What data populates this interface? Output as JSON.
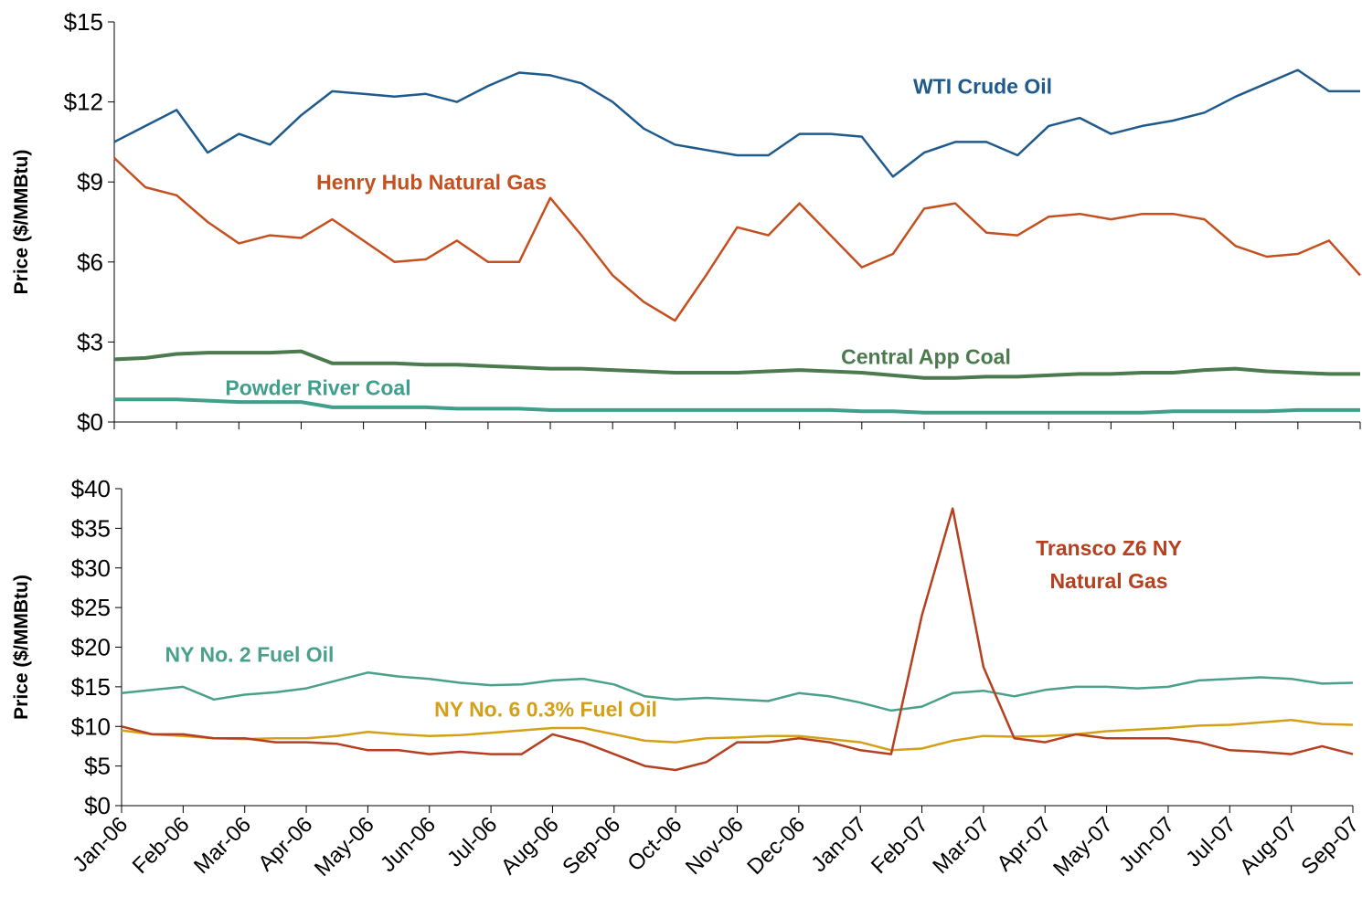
{
  "chart_data": [
    {
      "type": "line",
      "ylabel": "Price ($/MMBtu)",
      "categories": [
        null,
        null,
        null,
        null,
        null,
        null,
        null,
        null,
        null,
        null,
        null,
        null,
        null,
        null,
        null,
        null,
        null,
        null,
        null,
        null,
        null,
        null,
        null,
        null,
        null,
        null,
        null,
        null,
        null,
        null,
        null,
        null,
        null,
        null,
        null,
        null,
        null,
        null,
        null,
        null,
        null
      ],
      "ylim": [
        0,
        15
      ],
      "yticks": [
        {
          "value": 0,
          "label": "$0"
        },
        {
          "value": 3,
          "label": "$3"
        },
        {
          "value": 6,
          "label": "$6"
        },
        {
          "value": 9,
          "label": "$9"
        },
        {
          "value": 12,
          "label": "$12"
        },
        {
          "value": 15,
          "label": "$15"
        }
      ],
      "series": [
        {
          "name": "WTI Crude Oil",
          "color": "#1f5a8c",
          "values": [
            10.5,
            11.1,
            11.7,
            10.1,
            10.8,
            10.4,
            11.5,
            12.4,
            12.3,
            12.2,
            12.3,
            12.0,
            12.6,
            13.1,
            13.0,
            12.7,
            12.0,
            11.0,
            10.4,
            10.2,
            10.0,
            10.0,
            10.8,
            10.8,
            10.7,
            9.2,
            10.1,
            10.5,
            10.5,
            10.0,
            11.1,
            11.4,
            10.8,
            11.1,
            11.3,
            11.6,
            12.2,
            12.7,
            13.2,
            12.4,
            12.4
          ]
        },
        {
          "name": "Henry Hub Natural Gas",
          "color": "#c5501f",
          "values": [
            9.9,
            8.8,
            8.5,
            7.5,
            6.7,
            7.0,
            6.9,
            7.6,
            6.8,
            6.0,
            6.1,
            6.8,
            6.0,
            6.0,
            8.4,
            7.0,
            5.5,
            4.5,
            3.8,
            5.5,
            7.3,
            7.0,
            8.2,
            7.0,
            5.8,
            6.3,
            8.0,
            8.2,
            7.1,
            7.0,
            7.7,
            7.8,
            7.6,
            7.8,
            7.8,
            7.6,
            6.6,
            6.2,
            6.3,
            6.8,
            5.5
          ]
        },
        {
          "name": "Central App Coal",
          "color": "#4b7a4e",
          "values": [
            2.35,
            2.4,
            2.55,
            2.6,
            2.6,
            2.6,
            2.65,
            2.2,
            2.2,
            2.2,
            2.15,
            2.15,
            2.1,
            2.05,
            2.0,
            2.0,
            1.95,
            1.9,
            1.85,
            1.85,
            1.85,
            1.9,
            1.95,
            1.9,
            1.85,
            1.75,
            1.65,
            1.65,
            1.7,
            1.7,
            1.75,
            1.8,
            1.8,
            1.85,
            1.85,
            1.95,
            2.0,
            1.9,
            1.85,
            1.8,
            1.8
          ]
        },
        {
          "name": "Powder River Coal",
          "color": "#3f9f8a",
          "values": [
            0.85,
            0.85,
            0.85,
            0.8,
            0.75,
            0.75,
            0.75,
            0.55,
            0.55,
            0.55,
            0.55,
            0.5,
            0.5,
            0.5,
            0.45,
            0.45,
            0.45,
            0.45,
            0.45,
            0.45,
            0.45,
            0.45,
            0.45,
            0.45,
            0.4,
            0.4,
            0.35,
            0.35,
            0.35,
            0.35,
            0.35,
            0.35,
            0.35,
            0.35,
            0.4,
            0.4,
            0.4,
            0.4,
            0.45,
            0.45,
            0.45
          ]
        }
      ]
    },
    {
      "type": "line",
      "ylabel": "Price ($/MMBtu)",
      "categories": [
        "Jan-06",
        null,
        "Feb-06",
        null,
        "Mar-06",
        null,
        "Apr-06",
        null,
        "May-06",
        null,
        "Jun-06",
        null,
        "Jul-06",
        null,
        "Aug-06",
        null,
        "Sep-06",
        null,
        "Oct-06",
        null,
        "Nov-06",
        null,
        "Dec-06",
        null,
        "Jan-07",
        null,
        "Feb-07",
        null,
        "Mar-07",
        null,
        "Apr-07",
        null,
        "May-07",
        null,
        "Jun-07",
        null,
        "Jul-07",
        null,
        "Aug-07",
        null,
        "Sep-07"
      ],
      "ylim": [
        0,
        40
      ],
      "yticks": [
        {
          "value": 0,
          "label": "$0"
        },
        {
          "value": 5,
          "label": "$5"
        },
        {
          "value": 10,
          "label": "$10"
        },
        {
          "value": 15,
          "label": "$15"
        },
        {
          "value": 20,
          "label": "$20"
        },
        {
          "value": 25,
          "label": "$25"
        },
        {
          "value": 30,
          "label": "$30"
        },
        {
          "value": 35,
          "label": "$35"
        },
        {
          "value": 40,
          "label": "$40"
        }
      ],
      "series": [
        {
          "name": "NY No. 2 Fuel Oil",
          "color": "#4aa08a",
          "values": [
            14.2,
            14.6,
            15.0,
            13.4,
            14.0,
            14.3,
            14.8,
            15.8,
            16.8,
            16.3,
            16.0,
            15.5,
            15.2,
            15.3,
            15.8,
            16.0,
            15.3,
            13.8,
            13.4,
            13.6,
            13.4,
            13.2,
            14.2,
            13.8,
            13.0,
            12.0,
            12.5,
            14.2,
            14.5,
            13.8,
            14.6,
            15.0,
            15.0,
            14.8,
            15.0,
            15.8,
            16.0,
            16.2,
            16.0,
            15.4,
            15.5
          ]
        },
        {
          "name": "NY No. 6 0.3% Fuel Oil",
          "color": "#d4a017",
          "values": [
            9.5,
            9.0,
            8.8,
            8.5,
            8.4,
            8.5,
            8.5,
            8.8,
            9.3,
            9.0,
            8.8,
            8.9,
            9.2,
            9.5,
            9.8,
            9.8,
            9.0,
            8.2,
            8.0,
            8.5,
            8.6,
            8.8,
            8.8,
            8.4,
            8.0,
            7.0,
            7.2,
            8.2,
            8.8,
            8.7,
            8.8,
            9.0,
            9.4,
            9.6,
            9.8,
            10.1,
            10.2,
            10.5,
            10.8,
            10.3,
            10.2
          ]
        },
        {
          "name": "Transco Z6 NY Natural Gas",
          "color": "#b5401f",
          "values": [
            10.0,
            9.0,
            9.0,
            8.5,
            8.5,
            8.0,
            8.0,
            7.8,
            7.0,
            7.0,
            6.5,
            6.8,
            6.5,
            6.5,
            9.0,
            8.0,
            6.5,
            5.0,
            4.5,
            5.5,
            8.0,
            8.0,
            8.5,
            8.0,
            7.0,
            6.5,
            24.0,
            37.5,
            17.5,
            8.5,
            8.0,
            9.0,
            8.5,
            8.5,
            8.5,
            8.0,
            7.0,
            6.8,
            6.5,
            7.5,
            6.5
          ]
        }
      ]
    }
  ]
}
